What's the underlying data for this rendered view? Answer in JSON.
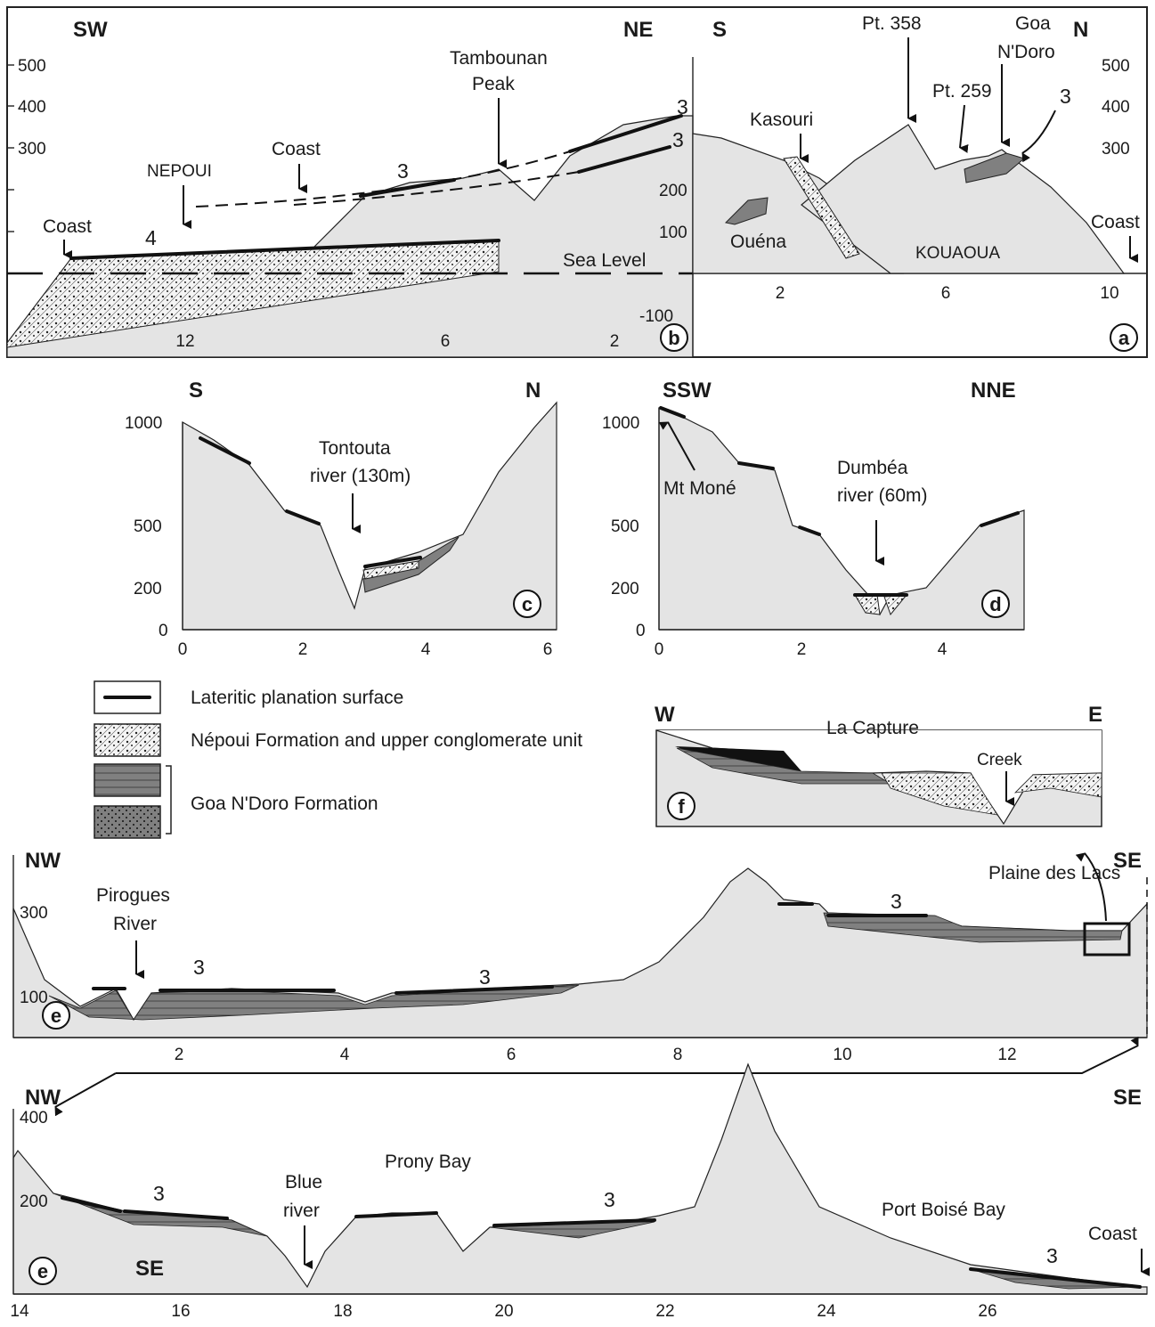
{
  "panel_b": {
    "dir_left": "SW",
    "dir_right": "NE",
    "yticks": [
      "500",
      "400",
      "300"
    ],
    "xticks": [
      "12",
      "6",
      "2"
    ],
    "labels": {
      "coast1": "Coast",
      "nepoui": "NEPOUI",
      "coast2": "Coast",
      "peak": "Tambounan Peak",
      "unit4": "4",
      "unit3a": "3",
      "unit3b": "3",
      "unit3c": "3",
      "sea": "Sea Level"
    },
    "tag": "b"
  },
  "panel_a": {
    "dir_left": "S",
    "dir_right": "N",
    "yticks": [
      "500",
      "400",
      "300",
      "200",
      "100",
      "-100"
    ],
    "xticks": [
      "2",
      "6",
      "10"
    ],
    "labels": {
      "pt358": "Pt. 358",
      "goa1": "Goa",
      "goa2": "N'Doro",
      "pt259": "Pt. 259",
      "kasouri": "Kasouri",
      "unit3": "3",
      "ouena": "Ouéna",
      "kouaoua": "KOUAOUA",
      "coast": "Coast"
    },
    "tag": "a"
  },
  "panel_c": {
    "dir_left": "S",
    "dir_right": "N",
    "yticks": [
      "1000",
      "500",
      "200",
      "0"
    ],
    "xticks": [
      "0",
      "2",
      "4",
      "6"
    ],
    "river1": "Tontouta",
    "river2": "river (130m)",
    "tag": "c"
  },
  "panel_d": {
    "dir_left": "SSW",
    "dir_right": "NNE",
    "yticks": [
      "1000",
      "500",
      "200",
      "0"
    ],
    "xticks": [
      "0",
      "2",
      "4"
    ],
    "mt": "Mt Moné",
    "river1": "Dumbéa",
    "river2": "river (60m)",
    "tag": "d"
  },
  "legend": {
    "item1": "Lateritic planation surface",
    "item2": "Népoui Formation and upper conglomerate unit",
    "item3": "Goa N'Doro Formation"
  },
  "panel_f": {
    "dir_left": "W",
    "dir_right": "E",
    "title": "La Capture",
    "creek": "Creek",
    "tag": "f"
  },
  "panel_e1": {
    "dir_left": "NW",
    "dir_right": "SE",
    "yticks": [
      "300",
      "100"
    ],
    "xticks": [
      "2",
      "4",
      "6",
      "8",
      "10",
      "12"
    ],
    "river1": "Pirogues",
    "river2": "River",
    "plaine": "Plaine des Lacs",
    "u1": "3",
    "u2": "3",
    "u3": "3",
    "tag": "e"
  },
  "panel_e2": {
    "dir_left": "NW",
    "dir_right": "SE",
    "yticks": [
      "400",
      "200"
    ],
    "xticks": [
      "14",
      "16",
      "18",
      "20",
      "22",
      "24",
      "26"
    ],
    "u1": "3",
    "u2": "3",
    "u3": "3",
    "blue1": "Blue",
    "blue2": "river",
    "prony": "Prony Bay",
    "port": "Port Boisé Bay",
    "coast": "Coast",
    "se": "SE",
    "tag": "e"
  }
}
